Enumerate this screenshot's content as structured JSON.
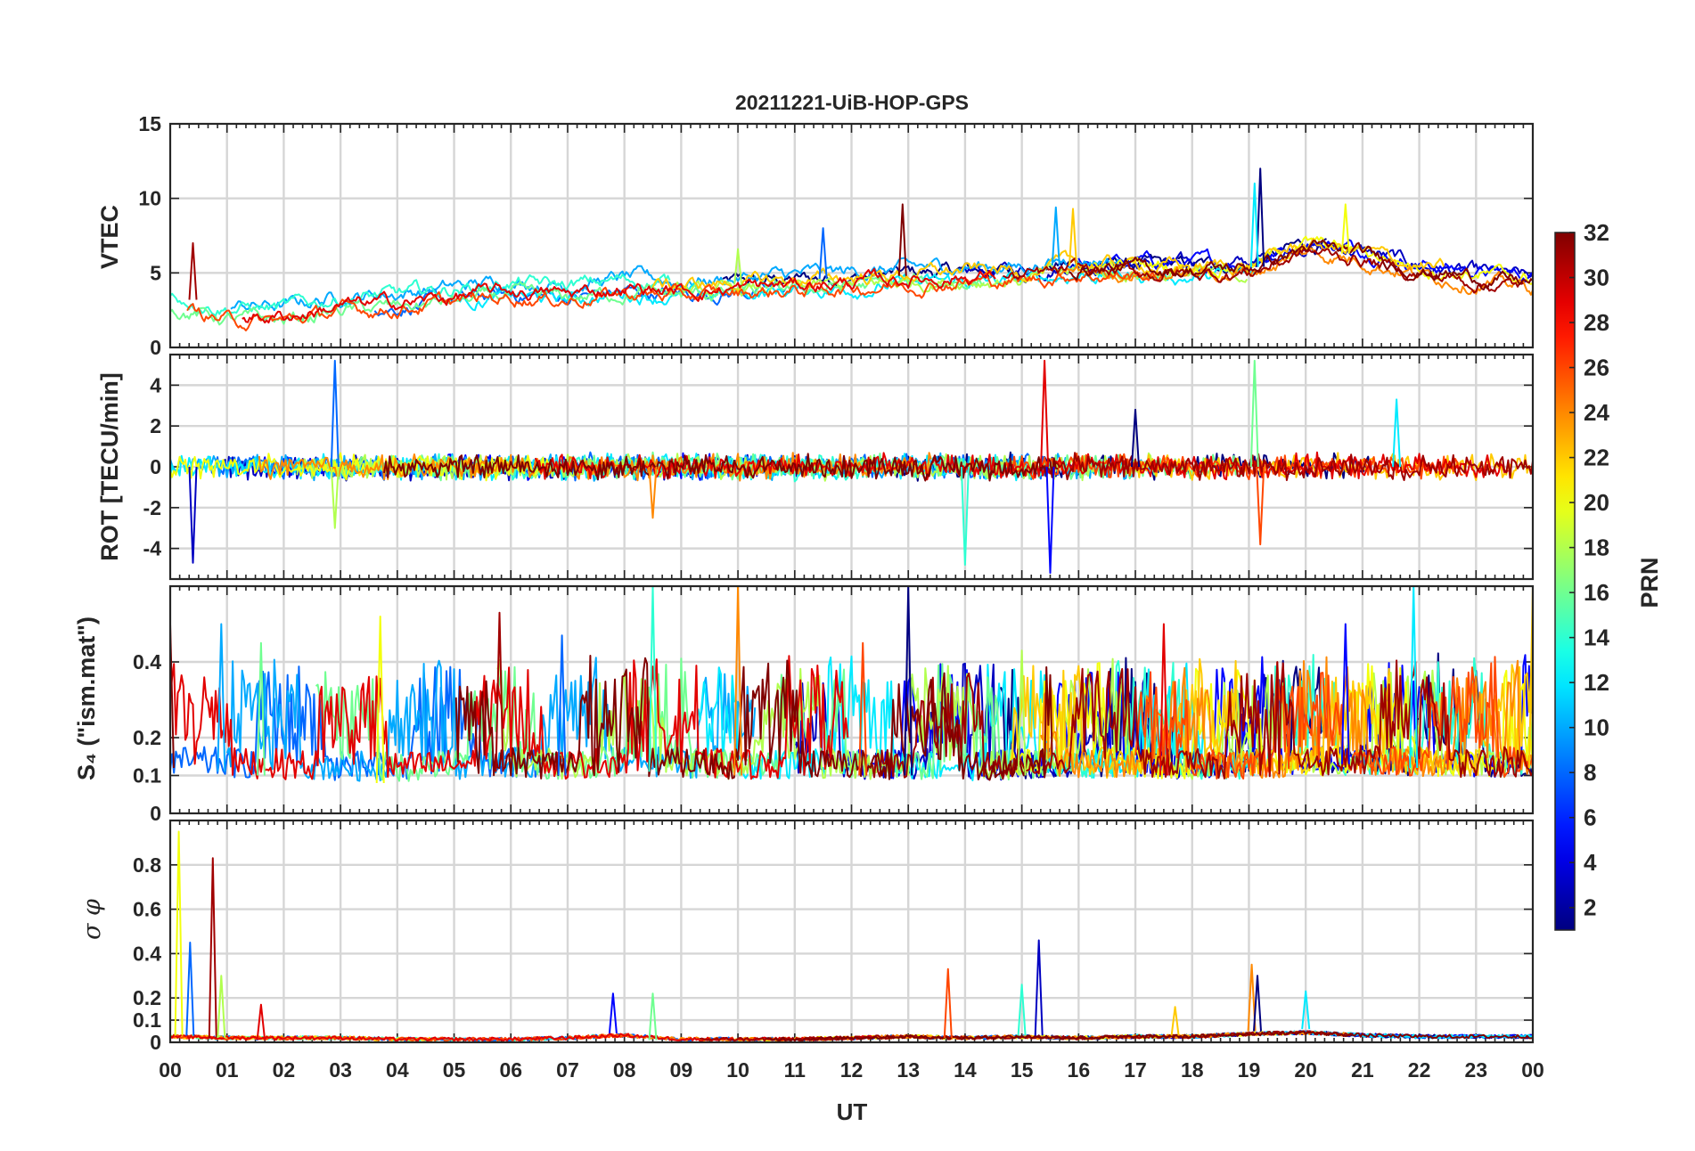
{
  "chart_data": {
    "type": "line",
    "title": "20211221-UiB-HOP-GPS",
    "xlabel": "UT",
    "x_range_hours": [
      0,
      24
    ],
    "x_tick_labels": [
      "00",
      "01",
      "02",
      "03",
      "04",
      "05",
      "06",
      "07",
      "08",
      "09",
      "10",
      "11",
      "12",
      "13",
      "14",
      "15",
      "16",
      "17",
      "18",
      "19",
      "20",
      "21",
      "22",
      "23",
      "00"
    ],
    "colorbar": {
      "label": "PRN",
      "range": [
        1,
        32
      ],
      "tick_labels": [
        "2",
        "4",
        "6",
        "8",
        "10",
        "12",
        "14",
        "16",
        "18",
        "20",
        "22",
        "24",
        "26",
        "28",
        "30",
        "32"
      ],
      "colormap": "jet"
    },
    "series_prns": [
      1,
      3,
      5,
      8,
      10,
      12,
      14,
      16,
      18,
      20,
      22,
      24,
      26,
      29,
      31,
      32
    ],
    "panels": [
      {
        "id": "vtec",
        "ylabel": "VTEC",
        "ylim": [
          0,
          15
        ],
        "y_ticks": [
          0,
          5,
          10,
          15
        ],
        "y_tick_labels": [
          "0",
          "5",
          "10",
          "15"
        ],
        "baseline": [
          3.2,
          2.4,
          2.3,
          3.0,
          3.2,
          3.6,
          4.0,
          3.8,
          4.2,
          4.0,
          4.2,
          4.4,
          4.6,
          4.8,
          5.0,
          5.0,
          5.5,
          5.4,
          5.3,
          5.4,
          6.8,
          6.3,
          5.3,
          4.8,
          4.4
        ],
        "noise": 1.0,
        "spikes": [
          [
            19.2,
            12
          ],
          [
            19.1,
            11
          ],
          [
            15.9,
            9.3
          ],
          [
            12.9,
            9.6
          ],
          [
            15.6,
            9.4
          ],
          [
            20.7,
            9.6
          ],
          [
            0.4,
            7
          ],
          [
            11.5,
            8
          ],
          [
            10.0,
            6.6
          ]
        ]
      },
      {
        "id": "rot",
        "ylabel": "ROT [TECU/min]",
        "ylim": [
          -5.5,
          5.5
        ],
        "y_ticks": [
          -4,
          -2,
          0,
          2,
          4
        ],
        "y_tick_labels": [
          "-4",
          "-2",
          "0",
          "2",
          "4"
        ],
        "baseline": [
          0,
          0,
          0,
          0,
          0,
          0,
          0,
          0,
          0,
          0,
          0,
          0,
          0,
          0,
          0,
          0,
          0,
          0,
          0,
          0,
          0,
          0,
          0,
          0,
          0
        ],
        "noise": 0.6,
        "spikes": [
          [
            2.9,
            5.2
          ],
          [
            2.9,
            -3.0
          ],
          [
            15.4,
            5.2
          ],
          [
            15.5,
            -5.2
          ],
          [
            19.1,
            5.2
          ],
          [
            19.2,
            -3.8
          ],
          [
            0.4,
            -4.7
          ],
          [
            14.0,
            -4.8
          ],
          [
            8.5,
            -2.5
          ],
          [
            17.0,
            2.8
          ],
          [
            21.6,
            3.3
          ]
        ]
      },
      {
        "id": "s4",
        "ylabel": "S₄ (\"ism.mat\")",
        "ylim": [
          0,
          0.6
        ],
        "y_ticks": [
          0,
          0.1,
          0.2,
          0.4
        ],
        "y_tick_labels": [
          "0",
          "0.1",
          "0.2",
          "0.4"
        ],
        "baseline": [
          0.12,
          0.11,
          0.1,
          0.09,
          0.08,
          0.1,
          0.11,
          0.1,
          0.12,
          0.11,
          0.1,
          0.1,
          0.1,
          0.1,
          0.09,
          0.1,
          0.11,
          0.11,
          0.1,
          0.1,
          0.12,
          0.13,
          0.12,
          0.11,
          0.12
        ],
        "noise": 0.1,
        "spikes": [
          [
            8.5,
            0.6
          ],
          [
            10.0,
            0.6
          ],
          [
            13.0,
            0.6
          ],
          [
            21.9,
            0.6
          ],
          [
            24.0,
            0.6
          ],
          [
            0.0,
            0.5
          ],
          [
            0.9,
            0.5
          ],
          [
            3.7,
            0.52
          ],
          [
            5.8,
            0.53
          ],
          [
            6.9,
            0.47
          ],
          [
            15.0,
            0.43
          ],
          [
            17.5,
            0.5
          ],
          [
            20.7,
            0.5
          ],
          [
            1.6,
            0.45
          ],
          [
            12.2,
            0.45
          ]
        ]
      },
      {
        "id": "sigphi",
        "ylabel": "σ φ",
        "ylim": [
          0,
          1.0
        ],
        "y_ticks": [
          0,
          0.1,
          0.2,
          0.4,
          0.6,
          0.8
        ],
        "y_tick_labels": [
          "0",
          "0.1",
          "0.2",
          "0.4",
          "0.6",
          "0.8"
        ],
        "baseline": [
          0.03,
          0.02,
          0.02,
          0.02,
          0.01,
          0.01,
          0.01,
          0.02,
          0.04,
          0.01,
          0.01,
          0.01,
          0.02,
          0.03,
          0.02,
          0.03,
          0.02,
          0.03,
          0.03,
          0.05,
          0.06,
          0.04,
          0.03,
          0.03,
          0.03
        ],
        "noise": 0.02,
        "spikes": [
          [
            0.15,
            0.95
          ],
          [
            0.75,
            0.83
          ],
          [
            0.35,
            0.45
          ],
          [
            0.9,
            0.3
          ],
          [
            1.6,
            0.17
          ],
          [
            7.8,
            0.22
          ],
          [
            8.5,
            0.22
          ],
          [
            13.7,
            0.33
          ],
          [
            15.3,
            0.46
          ],
          [
            15.0,
            0.26
          ],
          [
            19.05,
            0.35
          ],
          [
            19.15,
            0.3
          ],
          [
            20.0,
            0.23
          ],
          [
            17.7,
            0.16
          ]
        ]
      }
    ]
  }
}
